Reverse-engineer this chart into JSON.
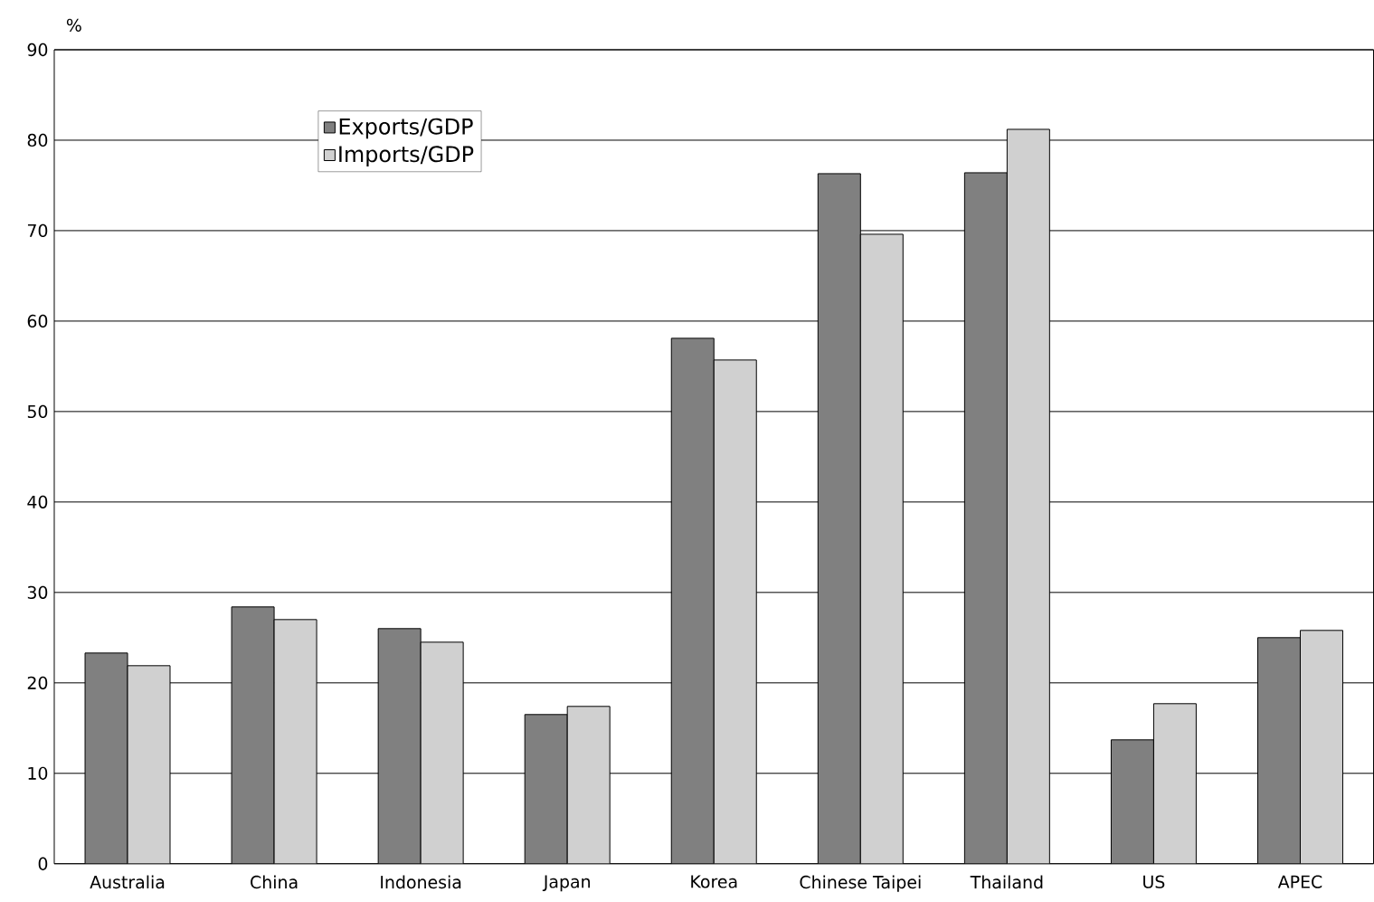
{
  "chart_data": {
    "type": "bar",
    "ylabel": "%",
    "categories": [
      "Australia",
      "China",
      "Indonesia",
      "Japan",
      "Korea",
      "Chinese Taipei",
      "Thailand",
      "US",
      "APEC"
    ],
    "series": [
      {
        "name": "Exports/GDP",
        "color": "#808080",
        "values": [
          23.3,
          28.4,
          26.0,
          16.5,
          58.1,
          76.3,
          76.4,
          13.7,
          25.0
        ]
      },
      {
        "name": "Imports/GDP",
        "color": "#d0d0d0",
        "values": [
          21.9,
          27.0,
          24.5,
          17.4,
          55.7,
          69.6,
          81.2,
          17.7,
          25.8
        ]
      }
    ],
    "ylim": [
      0,
      90
    ],
    "yticks": [
      0,
      10,
      20,
      30,
      40,
      50,
      60,
      70,
      80,
      90
    ],
    "grid": "y",
    "legend": "top left"
  }
}
